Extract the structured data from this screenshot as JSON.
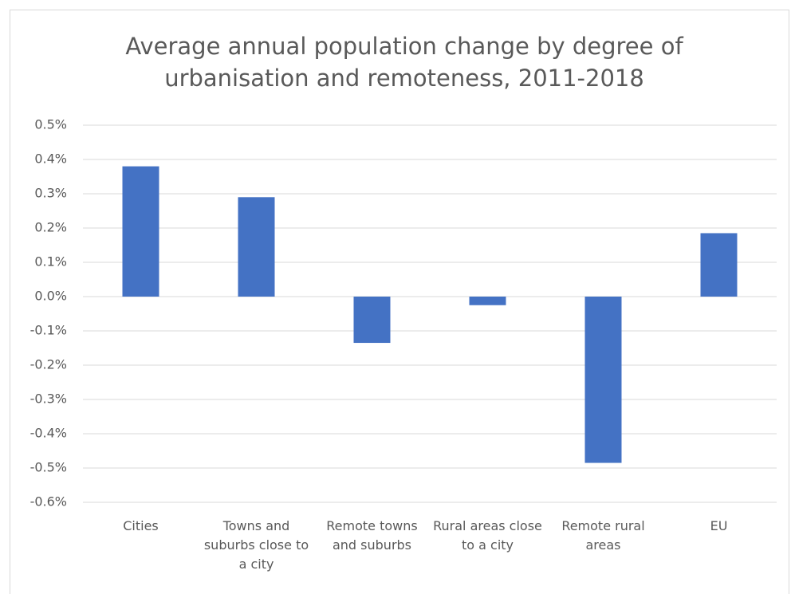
{
  "chart_data": {
    "type": "bar",
    "title": "Average annual population change by degree of urbanisation and remoteness, 2011-2018",
    "categories": [
      "Cities",
      "Towns and suburbs close to a city",
      "Remote towns and suburbs",
      "Rural areas close to a city",
      "Remote rural areas",
      "EU"
    ],
    "values": [
      0.38,
      0.29,
      -0.135,
      -0.025,
      -0.485,
      0.185
    ],
    "color": "#4472c4",
    "ylim": [
      -0.6,
      0.5
    ],
    "yticks": [
      {
        "value": 0.5,
        "label": "0.5%"
      },
      {
        "value": 0.4,
        "label": "0.4%"
      },
      {
        "value": 0.3,
        "label": "0.3%"
      },
      {
        "value": 0.2,
        "label": "0.2%"
      },
      {
        "value": 0.1,
        "label": "0.1%"
      },
      {
        "value": 0.0,
        "label": "0.0%"
      },
      {
        "value": -0.1,
        "label": "-0.1%"
      },
      {
        "value": -0.2,
        "label": "-0.2%"
      },
      {
        "value": -0.3,
        "label": "-0.3%"
      },
      {
        "value": -0.4,
        "label": "-0.4%"
      },
      {
        "value": -0.5,
        "label": "-0.5%"
      },
      {
        "value": -0.6,
        "label": "-0.6%"
      }
    ],
    "grid": true
  }
}
